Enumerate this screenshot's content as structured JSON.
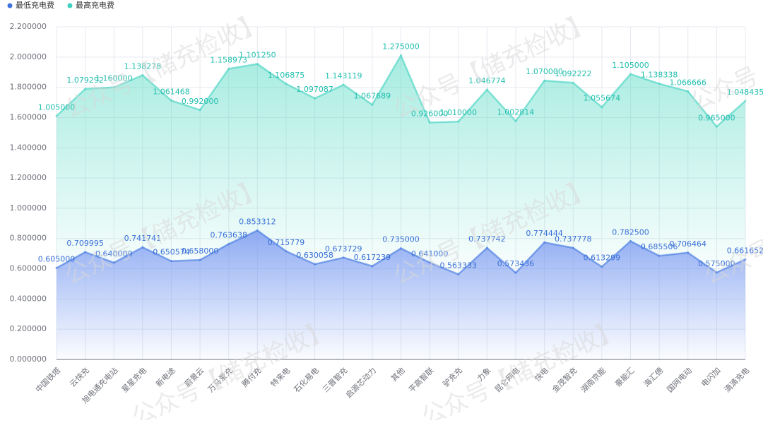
{
  "chart_data": {
    "type": "stacked-area",
    "categories": [
      "中国铁塔",
      "云快充",
      "旭电通充电站",
      "星星充电",
      "新电途",
      "蔚景云",
      "万马爱充",
      "腾付充",
      "特来电",
      "石化易电",
      "三晋智充",
      "启源芯动力",
      "其他",
      "平高智联",
      "驴充充",
      "力象",
      "昆仑网电",
      "快电",
      "金茂智充",
      "湖南京能",
      "豪能汇",
      "海汇德",
      "国网电动",
      "电闪加",
      "滴滴充电"
    ],
    "series": [
      {
        "name": "最低充电费",
        "color": "#3f74e0",
        "values": [
          0.605,
          0.709995,
          0.64,
          0.741741,
          0.650574,
          0.658,
          0.763638,
          0.853312,
          0.715779,
          0.630058,
          0.673729,
          0.617239,
          0.735,
          0.641,
          0.563333,
          0.737742,
          0.573436,
          0.774444,
          0.737778,
          0.613299,
          0.7825,
          0.685506,
          0.706464,
          0.575,
          0.661652
        ],
        "value_labels": [
          "0.605000",
          "0.709995",
          "0.640000",
          "0.741741",
          "0.650574",
          "0.658000",
          "0.763638",
          "0.853312",
          "0.715779",
          "0.630058",
          "0.673729",
          "0.617239",
          "0.735000",
          "0.641000",
          "0.563333",
          "0.737742",
          "0.573436",
          "0.774444",
          "0.737778",
          "0.613299",
          "0.782500",
          "0.685506",
          "0.706464",
          "0.575000",
          "0.661652"
        ]
      },
      {
        "name": "最高充电费",
        "color": "#3dd2c0",
        "values": [
          1.005,
          1.079292,
          1.16,
          1.138278,
          1.061468,
          0.992,
          1.158973,
          1.10125,
          1.106875,
          1.097087,
          1.143119,
          1.067689,
          1.275,
          0.926,
          1.01,
          1.046774,
          1.002814,
          1.07,
          1.092222,
          1.055674,
          1.105,
          1.138338,
          1.066666,
          0.965,
          1.048435
        ],
        "value_labels": [
          "1.005000",
          "1.079292",
          "1.160000",
          "1.138278",
          "1.061468",
          "0.992000",
          "1.158973",
          "1.101250",
          "1.106875",
          "1.097087",
          "1.143119",
          "1.067689",
          "1.275000",
          "0.926000",
          "1.010000",
          "1.046774",
          "1.002814",
          "1.070000",
          "1.092222",
          "1.055674",
          "1.105000",
          "1.138338",
          "1.066666",
          "0.965000",
          "1.048435"
        ]
      }
    ],
    "ylim": [
      0,
      2.2
    ],
    "yticks": [
      {
        "value": 0,
        "label": "0.000000"
      },
      {
        "value": 0.2,
        "label": "0.200000"
      },
      {
        "value": 0.4,
        "label": "0.400000"
      },
      {
        "value": 0.6,
        "label": "0.600000"
      },
      {
        "value": 0.8,
        "label": "0.800000"
      },
      {
        "value": 1,
        "label": "1.000000"
      },
      {
        "value": 1.2,
        "label": "1.200000"
      },
      {
        "value": 1.4,
        "label": "1.400000"
      },
      {
        "value": 1.6,
        "label": "1.600000"
      },
      {
        "value": 1.8,
        "label": "1.800000"
      },
      {
        "value": 2,
        "label": "2.000000"
      },
      {
        "value": 2.2,
        "label": "2.200000"
      }
    ],
    "grid": true,
    "stacked": true,
    "legend": "top-left",
    "watermark": "公众号【储充检收】"
  }
}
